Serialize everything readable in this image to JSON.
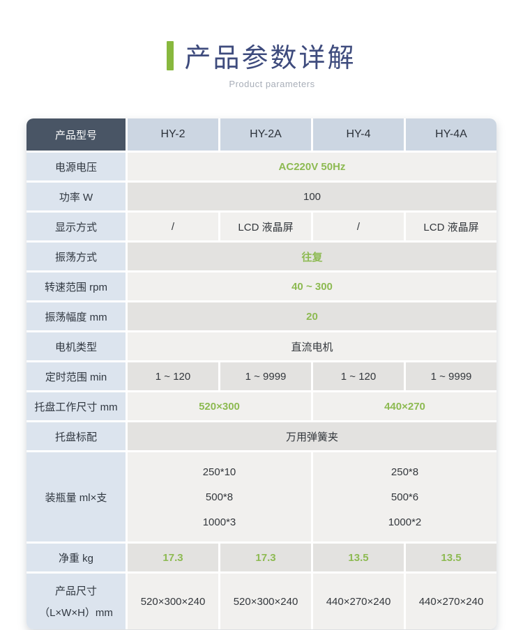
{
  "header": {
    "title": "产品参数详解",
    "subtitle": "Product parameters"
  },
  "table": {
    "corner_label": "产品型号",
    "models": [
      "HY-2",
      "HY-2A",
      "HY-4",
      "HY-4A"
    ],
    "rows": [
      {
        "label": "电源电压",
        "cells": [
          {
            "text": "AC220V 50Hz"
          }
        ]
      },
      {
        "label": "功率 W",
        "cells": [
          {
            "text": "100"
          }
        ]
      },
      {
        "label": "显示方式",
        "cells": [
          {
            "text": "/"
          },
          {
            "text": "LCD 液晶屏"
          },
          {
            "text": "/"
          },
          {
            "text": "LCD 液晶屏"
          }
        ]
      },
      {
        "label": "振荡方式",
        "cells": [
          {
            "text": "往复"
          }
        ]
      },
      {
        "label": "转速范围 rpm",
        "cells": [
          {
            "text": "40 ~ 300"
          }
        ]
      },
      {
        "label": "振荡幅度 mm",
        "cells": [
          {
            "text": "20"
          }
        ]
      },
      {
        "label": "电机类型",
        "cells": [
          {
            "text": "直流电机"
          }
        ]
      },
      {
        "label": "定时范围 min",
        "cells": [
          {
            "text": "1 ~ 120"
          },
          {
            "text": "1 ~ 9999"
          },
          {
            "text": "1 ~ 120"
          },
          {
            "text": "1 ~ 9999"
          }
        ]
      },
      {
        "label": "托盘工作尺寸 mm",
        "cells": [
          {
            "text": "520×300"
          },
          {
            "text": "440×270"
          }
        ]
      },
      {
        "label": "托盘标配",
        "cells": [
          {
            "text": "万用弹簧夹"
          }
        ]
      },
      {
        "label": "装瓶量 ml×支",
        "cells": [
          {
            "lines": [
              "250*10",
              "500*8",
              "1000*3"
            ]
          },
          {
            "lines": [
              "250*8",
              "500*6",
              "1000*2"
            ]
          }
        ]
      },
      {
        "label": "净重 kg",
        "cells": [
          {
            "text": "17.3"
          },
          {
            "text": "17.3"
          },
          {
            "text": "13.5"
          },
          {
            "text": "13.5"
          }
        ]
      },
      {
        "label_line1": "产品尺寸",
        "label_line2": "（L×W×H）mm",
        "cells": [
          {
            "text": "520×300×240"
          },
          {
            "text": "520×300×240"
          },
          {
            "text": "440×270×240"
          },
          {
            "text": "440×270×240"
          }
        ]
      }
    ]
  },
  "colors": {
    "accent_green": "#88b83e",
    "green_text": "#8dba52",
    "title_navy": "#3e4b7d",
    "subtitle_gray": "#a8aeb8",
    "header_dark_bg": "#495565",
    "header_light_bg": "#ccd6e2",
    "label_col_bg": "#dce4ee",
    "row_light_bg": "#f1f0ee",
    "row_dark_bg": "#e3e2e0",
    "dark_text": "#33373c"
  }
}
